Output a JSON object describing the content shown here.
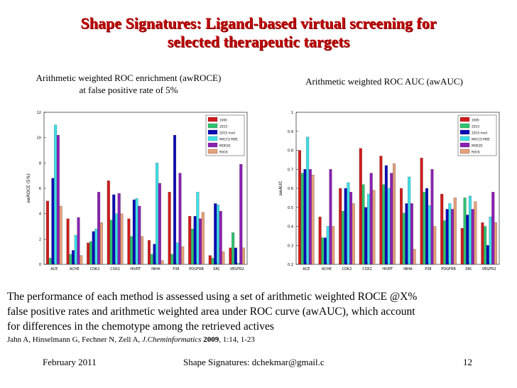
{
  "slide": {
    "title_line1": "Shape Signatures: Ligand-based virtual screening for",
    "title_line2": "selected therapeutic targets",
    "left_caption_line1": "Arithmetic weighted ROC enrichment (awROCE)",
    "left_caption_line2": "at false positive rate of 5%",
    "right_caption": "Arithmetic weighted ROC AUC (awAUC)",
    "paragraph_line1": "The performance of each method is assessed using a set of arithmetic weighted ROCE @X%",
    "paragraph_line2": "false positive rates and arithmetic weighted area under ROC curve (awAUC), which account",
    "paragraph_line3": "for differences in the chemotype among the retrieved actives",
    "reference_authors": "Jahn A, Hinselmann G, Fechner N, Zell A, ",
    "reference_journal": "J.Cheminformatics",
    "reference_year": "2009",
    "reference_rest": ", 1:14, 1-23",
    "footer_date": "February 2011",
    "footer_center": "Shape Signatures: dchekmar@gmail.c",
    "footer_page": "12"
  },
  "colors": {
    "title": "#c00000",
    "series": [
      "#d11a1a",
      "#2ec26e",
      "#0a0ab8",
      "#3ee0e8",
      "#8b1fb3",
      "#e6a07a"
    ]
  },
  "chart_data": [
    {
      "type": "bar",
      "title": "Arithmetic weighted ROC enrichment (awROCE) at false positive rate of 5%",
      "xlabel": "",
      "ylabel": "awROCE (5%)",
      "ylim": [
        0,
        12
      ],
      "yticks": [
        0,
        2,
        4,
        6,
        8,
        10,
        12
      ],
      "legend_position": "top-right",
      "categories": [
        "ACE",
        "ACHE",
        "CDK2",
        "COX2",
        "HIVRT",
        "INHA",
        "P38",
        "PDGFRB",
        "SRC",
        "VEGFR2"
      ],
      "series": [
        {
          "name": "1000",
          "values": [
            5.0,
            3.6,
            1.7,
            6.6,
            3.6,
            1.9,
            5.7,
            3.8,
            0.7,
            1.3
          ]
        },
        {
          "name": "2D15",
          "values": [
            0.5,
            0.8,
            1.8,
            3.5,
            2.2,
            0.8,
            0.8,
            2.8,
            0.5,
            2.5
          ]
        },
        {
          "name": "2D15 mod",
          "values": [
            6.8,
            1.1,
            2.6,
            5.5,
            5.1,
            1.6,
            10.2,
            3.8,
            4.8,
            1.3
          ]
        },
        {
          "name": "MACCS MOE",
          "values": [
            11.0,
            2.3,
            2.8,
            4.0,
            5.2,
            8.0,
            1.7,
            5.7,
            4.7,
            0.1
          ]
        },
        {
          "name": "MOE2D",
          "values": [
            10.2,
            3.7,
            5.7,
            5.6,
            4.6,
            6.4,
            7.2,
            3.6,
            4.2,
            7.9
          ]
        },
        {
          "name": "ROCK",
          "values": [
            4.6,
            0.7,
            3.3,
            4.0,
            2.2,
            0.3,
            1.4,
            4.1,
            1.0,
            1.3
          ]
        }
      ]
    },
    {
      "type": "bar",
      "title": "Arithmetic weighted ROC AUC (awAUC)",
      "xlabel": "",
      "ylabel": "awAUC",
      "ylim": [
        0.2,
        1
      ],
      "yticks": [
        0.2,
        0.3,
        0.4,
        0.5,
        0.6,
        0.7,
        0.8,
        0.9,
        1
      ],
      "legend_position": "top-right",
      "categories": [
        "ACE",
        "ACHE",
        "CDK2",
        "COX2",
        "HIVRT",
        "INHA",
        "P38",
        "PDGFRB",
        "SRC",
        "VEGFR2"
      ],
      "series": [
        {
          "name": "1000",
          "values": [
            0.8,
            0.45,
            0.6,
            0.81,
            0.77,
            0.6,
            0.76,
            0.57,
            0.39,
            0.42
          ]
        },
        {
          "name": "2D15",
          "values": [
            0.68,
            0.34,
            0.48,
            0.62,
            0.62,
            0.47,
            0.58,
            0.43,
            0.55,
            0.4
          ]
        },
        {
          "name": "2D15 mod",
          "values": [
            0.7,
            0.34,
            0.6,
            0.5,
            0.72,
            0.52,
            0.6,
            0.49,
            0.46,
            0.3
          ]
        },
        {
          "name": "MACCS MOE",
          "values": [
            0.87,
            0.4,
            0.63,
            0.57,
            0.6,
            0.66,
            0.51,
            0.52,
            0.56,
            0.45
          ]
        },
        {
          "name": "MOE2D",
          "values": [
            0.7,
            0.7,
            0.58,
            0.68,
            0.68,
            0.52,
            0.7,
            0.49,
            0.49,
            0.58
          ]
        },
        {
          "name": "ROCK",
          "values": [
            0.67,
            0.4,
            0.52,
            0.59,
            0.73,
            0.28,
            0.4,
            0.55,
            0.53,
            0.42
          ]
        }
      ]
    }
  ]
}
